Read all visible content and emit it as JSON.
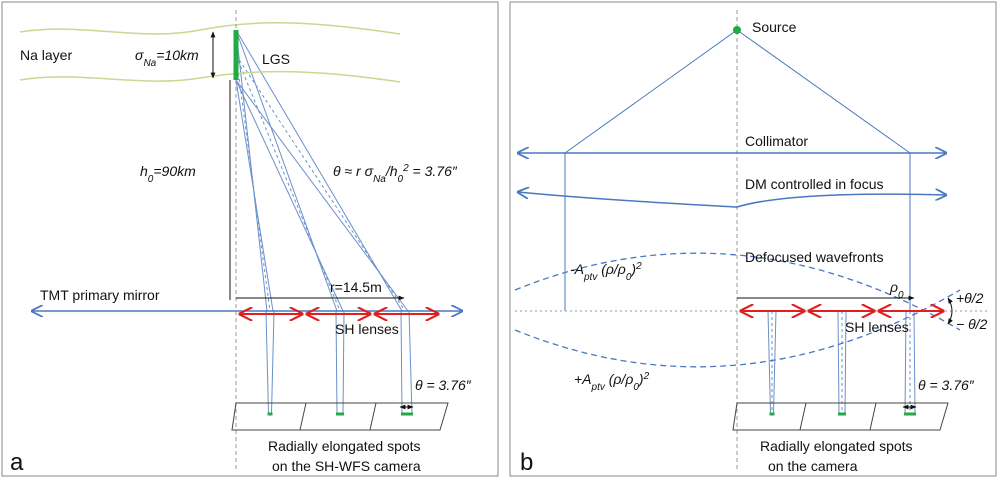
{
  "panel_a": {
    "letter": "a",
    "na_layer": "Na layer",
    "sigma_label": [
      "σ",
      "Na",
      "=10km"
    ],
    "lgs": "LGS",
    "height_label": [
      "h",
      "0",
      "=90km"
    ],
    "theta_formula": [
      "θ ≈ r σ",
      "Na",
      "/h",
      "0",
      "2",
      " = 3.76″"
    ],
    "mirror": "TMT primary mirror",
    "radius": "r=14.5m",
    "lenses": "SH lenses",
    "theta": "θ = 3.76″",
    "caption": [
      "Radially elongated spots",
      "on the SH-WFS camera"
    ]
  },
  "panel_b": {
    "letter": "b",
    "source": "Source",
    "collimator": "Collimator",
    "dm": "DM controlled in focus",
    "wavefronts": "Defocused wavefronts",
    "minus_label": [
      "-A",
      "ptv",
      " (ρ/ρ",
      "0",
      ")",
      "2"
    ],
    "plus_label": [
      "+A",
      "ptv",
      " (ρ/ρ",
      "0",
      ")",
      "2"
    ],
    "rho": [
      "ρ",
      "0"
    ],
    "lenses": "SH lenses",
    "plus_half": "+θ/2",
    "minus_half": "− θ/2",
    "theta": "θ = 3.76″",
    "caption": [
      "Radially elongated spots",
      "on the camera"
    ]
  }
}
